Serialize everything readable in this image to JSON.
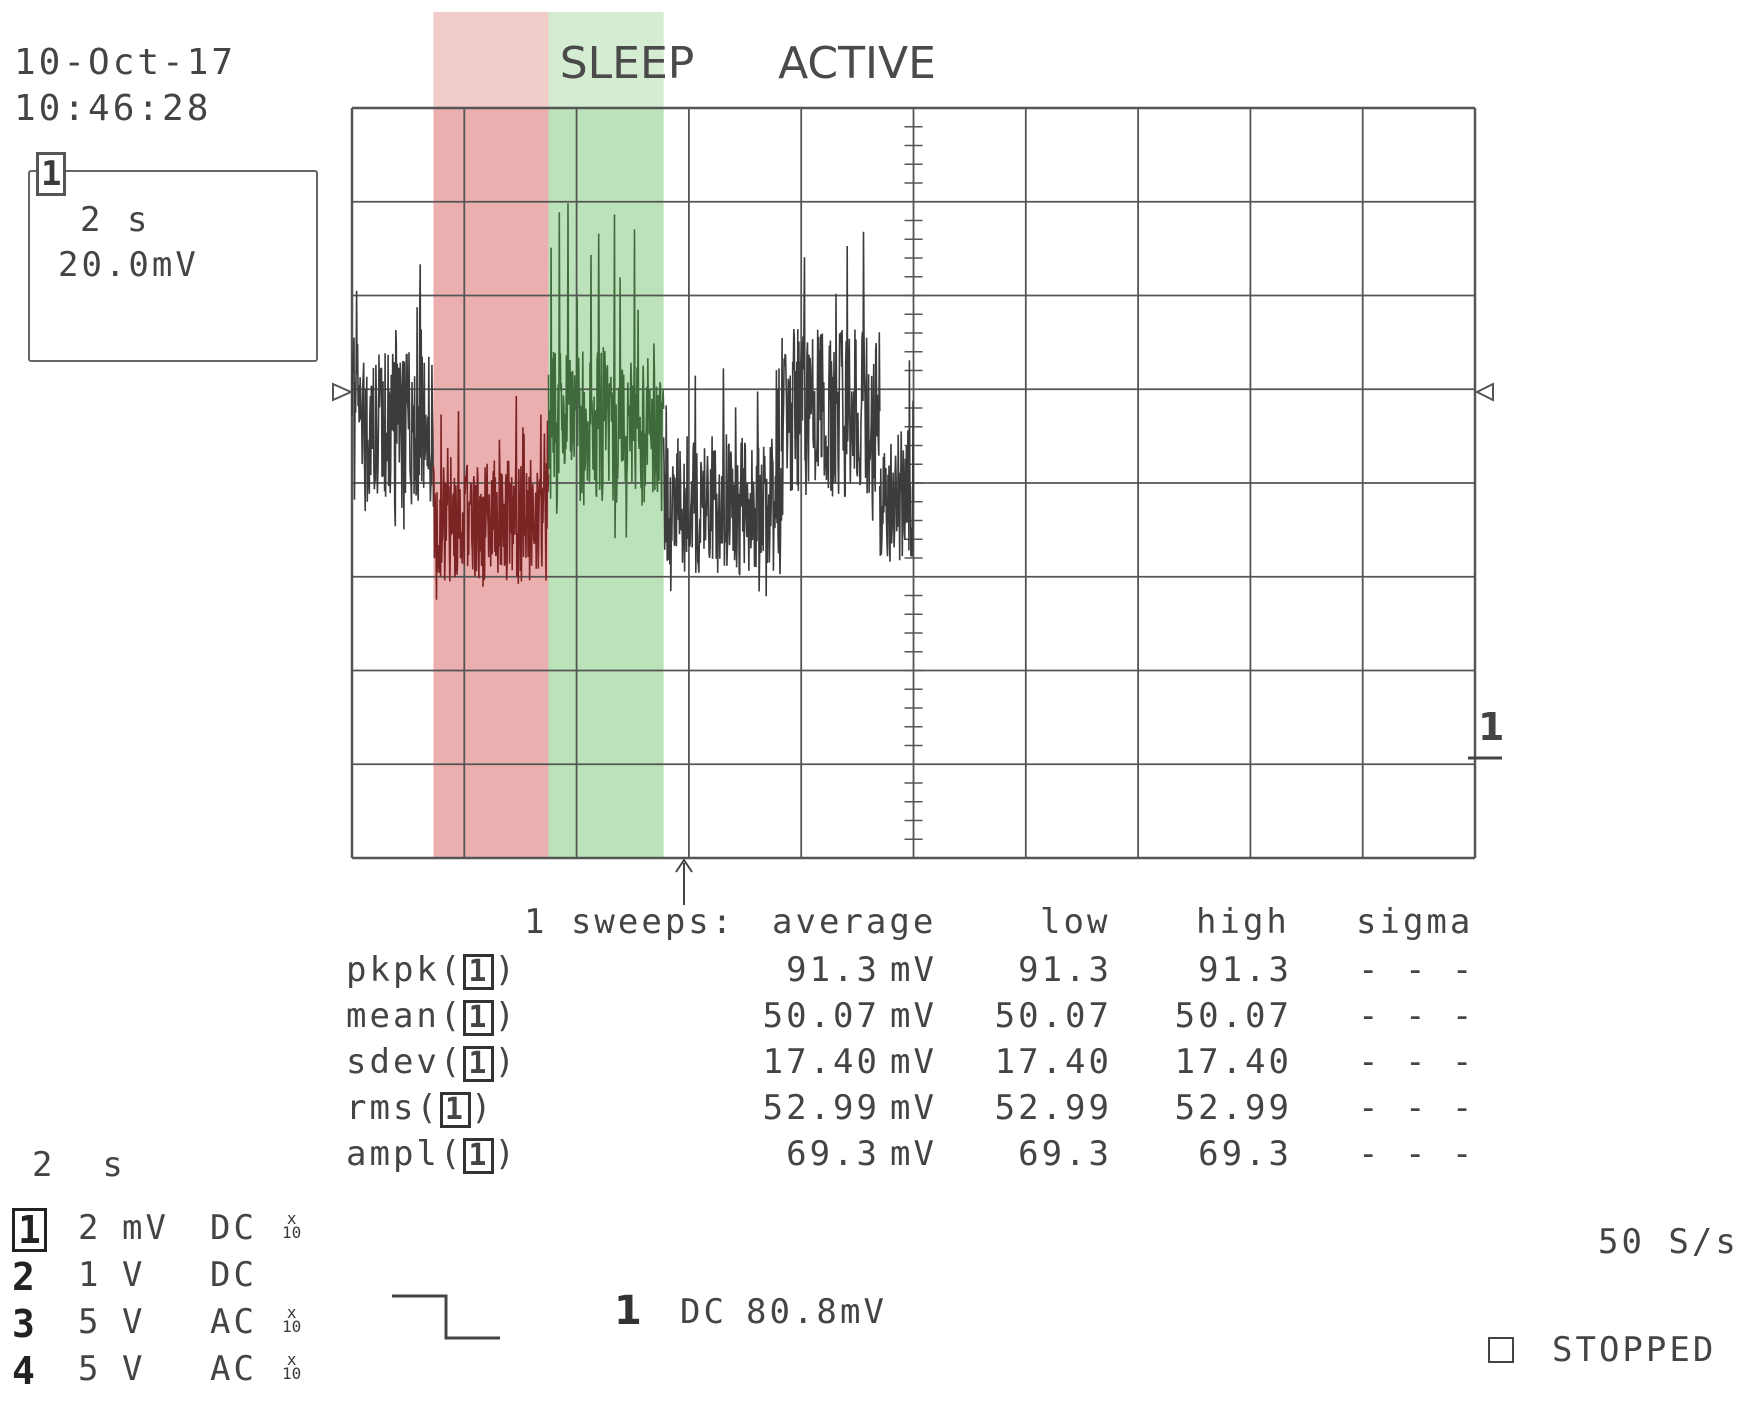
{
  "header": {
    "date": "10-Oct-17",
    "time": "10:46:28"
  },
  "timebase_box": {
    "channel": "1",
    "time_div": "2 s",
    "volt_div": "20.0mV"
  },
  "regions": [
    {
      "label": "SLEEP",
      "color": "#e07a7a"
    },
    {
      "label": "ACTIVE",
      "color": "#8fcf8c"
    }
  ],
  "trace_color": "#3c3c3c",
  "grid_color": "#555555",
  "channel_marker": "1",
  "measurements": {
    "sweeps_label": "1 sweeps:",
    "columns": [
      "average",
      "low",
      "high",
      "sigma"
    ],
    "rows": [
      {
        "name": "pkpk",
        "channel": "1",
        "average": "91.3",
        "unit": "mV",
        "low": "91.3",
        "high": "91.3",
        "sigma": "- - -"
      },
      {
        "name": "mean",
        "channel": "1",
        "average": "50.07",
        "unit": "mV",
        "low": "50.07",
        "high": "50.07",
        "sigma": "- - -"
      },
      {
        "name": "sdev",
        "channel": "1",
        "average": "17.40",
        "unit": "mV",
        "low": "17.40",
        "high": "17.40",
        "sigma": "- - -"
      },
      {
        "name": "rms",
        "channel": "1",
        "average": "52.99",
        "unit": "mV",
        "low": "52.99",
        "high": "52.99",
        "sigma": "- - -"
      },
      {
        "name": "ampl",
        "channel": "1",
        "average": "69.3",
        "unit": "mV",
        "low": "69.3",
        "high": "69.3",
        "sigma": "- - -"
      }
    ]
  },
  "channels_panel": {
    "timebase": "2  s",
    "channels": [
      {
        "num": "1",
        "value": "2",
        "unit": "mV",
        "coupling": "DC",
        "probe": "10",
        "probe_mark": "x"
      },
      {
        "num": "2",
        "value": "1",
        "unit": "V",
        "coupling": "DC",
        "probe": "",
        "probe_mark": ""
      },
      {
        "num": "3",
        "value": "5",
        "unit": "V",
        "coupling": "AC",
        "probe": "10",
        "probe_mark": "x"
      },
      {
        "num": "4",
        "value": "5",
        "unit": "V",
        "coupling": "AC",
        "probe": "10",
        "probe_mark": "x"
      }
    ]
  },
  "trigger": {
    "channel": "1",
    "coupling": "DC",
    "level": "80.8",
    "unit": "mV"
  },
  "sample_rate": "50 S/s",
  "status": "STOPPED",
  "chart_data": {
    "type": "line",
    "title": "",
    "xlabel": "",
    "ylabel": "",
    "x_unit": "s",
    "y_unit": "mV",
    "x_divisions": 10,
    "y_divisions": 8,
    "xlim": [
      0,
      20
    ],
    "ylim": [
      -80,
      80
    ],
    "shaded_regions": [
      {
        "label": "SLEEP",
        "x_start": 1.45,
        "x_end": 3.5
      },
      {
        "label": "ACTIVE",
        "x_start": 3.5,
        "x_end": 5.55
      }
    ],
    "segments": [
      {
        "x_start": 0.0,
        "x_end": 1.45,
        "mean": 11,
        "spread": 17,
        "spike": 30,
        "region": ""
      },
      {
        "x_start": 1.45,
        "x_end": 3.5,
        "mean": -8,
        "spread": 13,
        "spike": 22,
        "region": "SLEEP"
      },
      {
        "x_start": 3.5,
        "x_end": 5.55,
        "mean": 12,
        "spread": 17,
        "spike": 40,
        "region": "ACTIVE"
      },
      {
        "x_start": 5.55,
        "x_end": 7.65,
        "mean": -5,
        "spread": 15,
        "spike": 25,
        "region": ""
      },
      {
        "x_start": 7.65,
        "x_end": 9.4,
        "mean": 15,
        "spread": 18,
        "spike": 35,
        "region": ""
      },
      {
        "x_start": 9.4,
        "x_end": 10.0,
        "mean": -2,
        "spread": 15,
        "spike": 22,
        "region": ""
      }
    ]
  }
}
